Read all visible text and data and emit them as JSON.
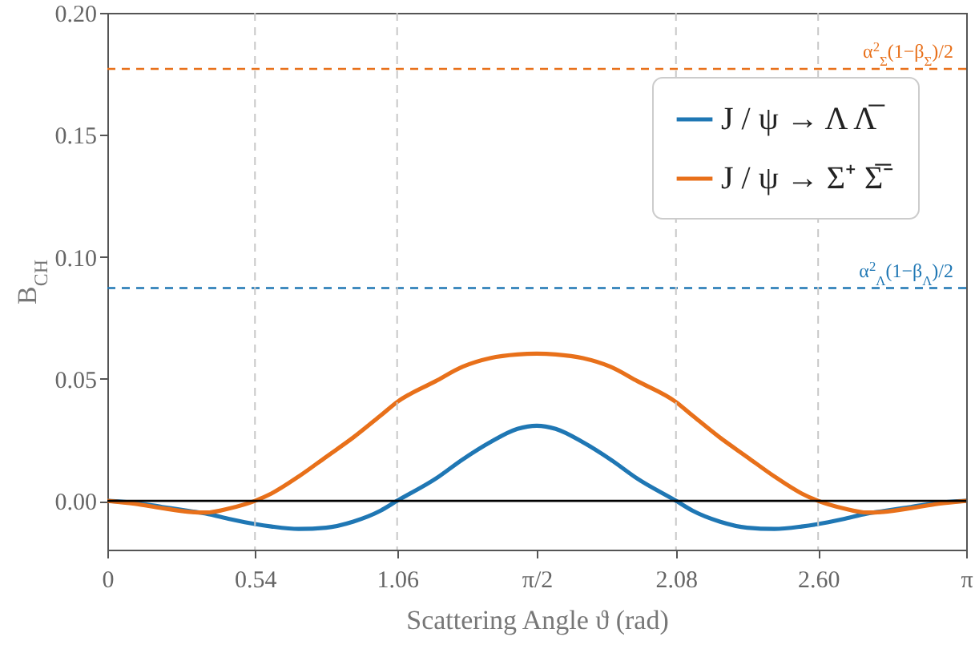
{
  "chart_data": {
    "type": "line",
    "xlabel": "Scattering Angle ϑ (rad)",
    "ylabel": "B$_{CH}$",
    "xlim": [
      0,
      3.1416
    ],
    "ylim": [
      -0.02,
      0.2
    ],
    "xticks": [
      0,
      0.54,
      1.06,
      {
        "value": 1.5708,
        "label": "π/2"
      },
      2.08,
      "2.60",
      {
        "value": 3.1416,
        "label": "π"
      }
    ],
    "yticks": [
      {
        "value": 0,
        "label": "0.00"
      },
      {
        "value": 0.05,
        "label": "0.05"
      },
      {
        "value": 0.1,
        "label": "0.10"
      },
      {
        "value": 0.15,
        "label": "0.15"
      },
      {
        "value": 0.2,
        "label": "0.20"
      }
    ],
    "x": [
      0,
      0.1,
      0.2,
      0.3,
      0.36,
      0.45,
      0.54,
      0.6,
      0.7,
      0.8,
      0.9,
      1.0,
      1.06,
      1.2,
      1.3,
      1.4,
      1.5,
      1.5708,
      1.64,
      1.74,
      1.84,
      1.94,
      2.08,
      2.14,
      2.24,
      2.34,
      2.44,
      2.54,
      2.6,
      2.69,
      2.78,
      2.84,
      2.94,
      3.04,
      3.1416
    ],
    "series": [
      {
        "name": "J / ψ → Λ Λ̅",
        "color": "#1f77b4",
        "values": [
          0,
          -0.0008,
          -0.0025,
          -0.0042,
          -0.0052,
          -0.0075,
          -0.0095,
          -0.0105,
          -0.0115,
          -0.011,
          -0.0085,
          -0.004,
          0,
          0.009,
          0.017,
          0.024,
          0.0295,
          0.0308,
          0.0295,
          0.024,
          0.017,
          0.009,
          0,
          -0.004,
          -0.0085,
          -0.011,
          -0.0115,
          -0.0105,
          -0.0095,
          -0.0075,
          -0.0052,
          -0.0042,
          -0.0025,
          -0.0008,
          0
        ]
      },
      {
        "name": "J / ψ → Σ⁺ Σ̅⁻",
        "color": "#e8701a",
        "values": [
          0,
          -0.0012,
          -0.003,
          -0.0045,
          -0.0048,
          -0.003,
          0,
          0.003,
          0.01,
          0.018,
          0.026,
          0.035,
          0.0405,
          0.049,
          0.055,
          0.0585,
          0.06,
          0.0603,
          0.06,
          0.0585,
          0.055,
          0.049,
          0.0405,
          0.035,
          0.026,
          0.018,
          0.01,
          0.003,
          0,
          -0.003,
          -0.0048,
          -0.0045,
          -0.003,
          -0.0012,
          0
        ]
      }
    ],
    "ref_lines": [
      {
        "axis": "y",
        "value": 0.177,
        "label": "α$^{2}$$_{Σ}$(1−β$_{Σ}$)/2",
        "color": "#e8701a",
        "line_style": "dashed"
      },
      {
        "axis": "y",
        "value": 0.0872,
        "label": "α$^{2}$$_{Λ}$(1−β$_{Λ}$)/2",
        "color": "#1f77b4",
        "line_style": "dashed"
      },
      {
        "axis": "y",
        "value": 0,
        "color": "#000000",
        "line_style": "solid"
      },
      {
        "axis": "x",
        "value": 0.54,
        "color": "#c8c8c8",
        "line_style": "dashed"
      },
      {
        "axis": "x",
        "value": 1.06,
        "color": "#c8c8c8",
        "line_style": "dashed"
      },
      {
        "axis": "x",
        "value": 2.08,
        "color": "#c8c8c8",
        "line_style": "dashed"
      },
      {
        "axis": "x",
        "value": 2.6,
        "color": "#c8c8c8",
        "line_style": "dashed"
      }
    ],
    "legend": "top right",
    "grid": false,
    "line_style": "solid",
    "marker": "none"
  }
}
